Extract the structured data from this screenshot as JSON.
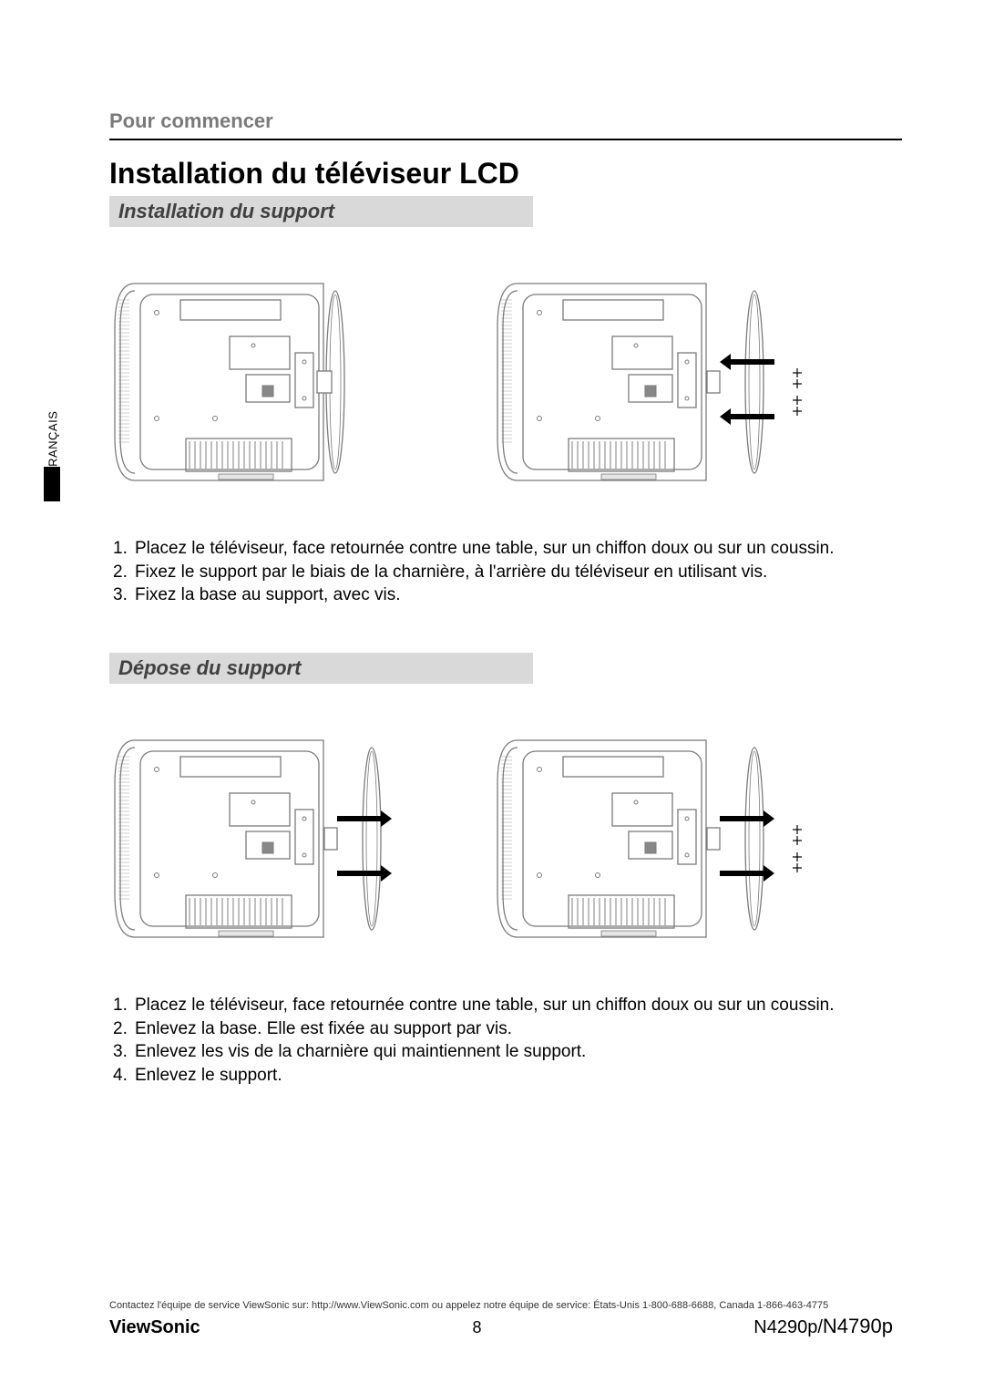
{
  "language_tab": "FRANÇAIS",
  "section_label": "Pour commencer",
  "page_title": "Installation du téléviseur LCD",
  "install": {
    "subtitle": "Installation du support",
    "steps": [
      "Placez le téléviseur, face retournée contre une table, sur un chiffon doux ou sur un coussin.",
      "Fixez le support par le biais de la charnière, à l'arrière du téléviseur en utilisant vis.",
      "Fixez la base au support, avec vis."
    ]
  },
  "remove": {
    "subtitle": "Dépose du support",
    "steps": [
      "Placez le téléviseur, face retournée contre une table, sur un chiffon doux ou sur un coussin.",
      "Enlevez la base. Elle est fixée au support par vis.",
      "Enlevez les vis de la charnière qui maintiennent le support.",
      "Enlevez le support."
    ]
  },
  "footer": {
    "contact": "Contactez l'équipe de service ViewSonic sur: http://www.ViewSonic.com ou appelez notre équipe de service: États-Unis 1-800-688-6688, Canada 1-866-463-4775",
    "brand": "ViewSonic",
    "page_number": "8",
    "model_a": "N4290p",
    "model_b": "N4790p"
  },
  "diagram": {
    "stroke": "#7b7b7b",
    "stroke_width": 1.3,
    "fill_body": "#ffffff",
    "fill_grille": "#d0d0d0",
    "arrow_color": "#000000"
  }
}
